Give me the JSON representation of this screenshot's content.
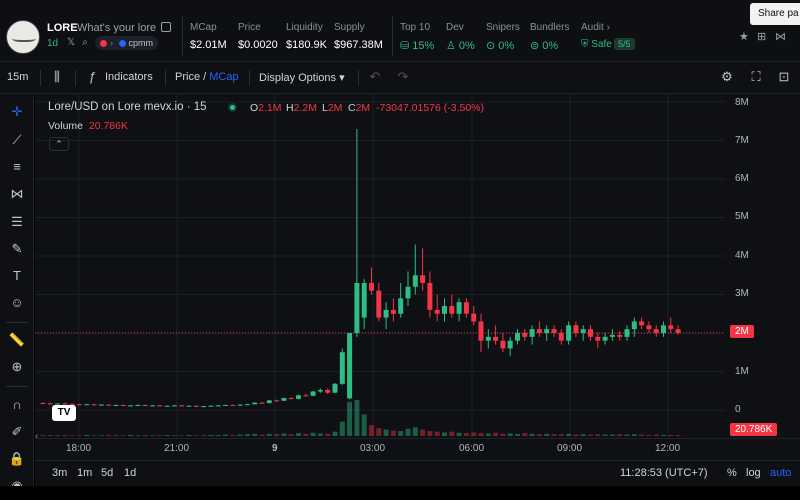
{
  "header": {
    "token_name": "LORE",
    "token_desc": "What's your lore",
    "age": "1d",
    "pair": "cpmm",
    "stats": [
      {
        "label": "MCap",
        "value": "$2.01M"
      },
      {
        "label": "Price",
        "value": "$0.0020"
      },
      {
        "label": "Liquidity",
        "value": "$180.9K"
      },
      {
        "label": "Supply",
        "value": "$967.38M"
      }
    ],
    "security": [
      {
        "label": "Top 10",
        "value": "15%"
      },
      {
        "label": "Dev",
        "value": "0%"
      },
      {
        "label": "Snipers",
        "value": "0%"
      },
      {
        "label": "Bundlers",
        "value": "0%"
      }
    ],
    "audit_label": "Audit",
    "audit_value": "Safe",
    "audit_score": "5/5",
    "share_tooltip": "Share pa"
  },
  "toolbar": {
    "interval": "15m",
    "indicators": "Indicators",
    "price": "Price",
    "price_sep": "/",
    "mcap": "MCap",
    "display_options": "Display Options"
  },
  "legend": {
    "title": "Lore/USD on Lore mevx.io · 15",
    "o_key": "O",
    "o_val": "2.1M",
    "h_key": "H",
    "h_val": "2.2M",
    "l_key": "L",
    "l_val": "2M",
    "c_key": "C",
    "c_val": "2M",
    "change": "-73047.01576 (-3.50%)",
    "volume_label": "Volume",
    "volume_value": "20.786K"
  },
  "price_axis": [
    "8M",
    "7M",
    "6M",
    "5M",
    "4M",
    "3M",
    "2M",
    "1M",
    "0"
  ],
  "price_tag": "2M",
  "volume_tag": "20.786K",
  "time_axis": [
    "18:00",
    "21:00",
    "9",
    "03:00",
    "06:00",
    "09:00",
    "12:00"
  ],
  "bottom": {
    "ranges": [
      "3m",
      "1m",
      "5d",
      "1d"
    ],
    "clock": "11:28:53 (UTC+7)",
    "percent": "%",
    "log": "log",
    "auto": "auto"
  },
  "colors": {
    "up": "#2ebd85",
    "down": "#f23645",
    "background": "#0e1014"
  },
  "chart_data": {
    "type": "candlestick",
    "ylabel": "",
    "ylim": [
      0,
      8000000
    ],
    "candles": [
      {
        "o": 180000,
        "h": 200000,
        "l": 160000,
        "c": 170000
      },
      {
        "o": 170000,
        "h": 190000,
        "l": 150000,
        "c": 160000
      },
      {
        "o": 160000,
        "h": 180000,
        "l": 150000,
        "c": 170000
      },
      {
        "o": 170000,
        "h": 190000,
        "l": 160000,
        "c": 160000
      },
      {
        "o": 160000,
        "h": 170000,
        "l": 140000,
        "c": 150000
      },
      {
        "o": 150000,
        "h": 160000,
        "l": 130000,
        "c": 140000
      },
      {
        "o": 140000,
        "h": 160000,
        "l": 130000,
        "c": 150000
      },
      {
        "o": 150000,
        "h": 160000,
        "l": 120000,
        "c": 130000
      },
      {
        "o": 130000,
        "h": 150000,
        "l": 120000,
        "c": 140000
      },
      {
        "o": 140000,
        "h": 150000,
        "l": 110000,
        "c": 120000
      },
      {
        "o": 120000,
        "h": 140000,
        "l": 110000,
        "c": 130000
      },
      {
        "o": 130000,
        "h": 140000,
        "l": 100000,
        "c": 110000
      },
      {
        "o": 110000,
        "h": 130000,
        "l": 100000,
        "c": 120000
      },
      {
        "o": 120000,
        "h": 140000,
        "l": 110000,
        "c": 130000
      },
      {
        "o": 130000,
        "h": 140000,
        "l": 100000,
        "c": 110000
      },
      {
        "o": 110000,
        "h": 130000,
        "l": 100000,
        "c": 120000
      },
      {
        "o": 120000,
        "h": 130000,
        "l": 90000,
        "c": 100000
      },
      {
        "o": 100000,
        "h": 120000,
        "l": 90000,
        "c": 110000
      },
      {
        "o": 110000,
        "h": 130000,
        "l": 100000,
        "c": 120000
      },
      {
        "o": 120000,
        "h": 130000,
        "l": 90000,
        "c": 100000
      },
      {
        "o": 100000,
        "h": 120000,
        "l": 90000,
        "c": 110000
      },
      {
        "o": 110000,
        "h": 120000,
        "l": 80000,
        "c": 90000
      },
      {
        "o": 90000,
        "h": 110000,
        "l": 80000,
        "c": 100000
      },
      {
        "o": 100000,
        "h": 120000,
        "l": 90000,
        "c": 110000
      },
      {
        "o": 110000,
        "h": 130000,
        "l": 100000,
        "c": 120000
      },
      {
        "o": 120000,
        "h": 140000,
        "l": 110000,
        "c": 130000
      },
      {
        "o": 130000,
        "h": 140000,
        "l": 110000,
        "c": 120000
      },
      {
        "o": 120000,
        "h": 150000,
        "l": 110000,
        "c": 140000
      },
      {
        "o": 140000,
        "h": 160000,
        "l": 130000,
        "c": 150000
      },
      {
        "o": 150000,
        "h": 200000,
        "l": 140000,
        "c": 190000
      },
      {
        "o": 190000,
        "h": 210000,
        "l": 170000,
        "c": 180000
      },
      {
        "o": 180000,
        "h": 260000,
        "l": 170000,
        "c": 250000
      },
      {
        "o": 250000,
        "h": 270000,
        "l": 230000,
        "c": 240000
      },
      {
        "o": 240000,
        "h": 320000,
        "l": 230000,
        "c": 310000
      },
      {
        "o": 310000,
        "h": 330000,
        "l": 280000,
        "c": 290000
      },
      {
        "o": 290000,
        "h": 400000,
        "l": 280000,
        "c": 380000
      },
      {
        "o": 380000,
        "h": 420000,
        "l": 350000,
        "c": 370000
      },
      {
        "o": 370000,
        "h": 500000,
        "l": 360000,
        "c": 480000
      },
      {
        "o": 480000,
        "h": 560000,
        "l": 450000,
        "c": 520000
      },
      {
        "o": 520000,
        "h": 560000,
        "l": 420000,
        "c": 450000
      },
      {
        "o": 450000,
        "h": 700000,
        "l": 440000,
        "c": 680000
      },
      {
        "o": 680000,
        "h": 1600000,
        "l": 650000,
        "c": 1500000
      },
      {
        "o": 300000,
        "h": 2000000,
        "l": 280000,
        "c": 2000000
      },
      {
        "o": 2000000,
        "h": 7300000,
        "l": 1900000,
        "c": 3300000
      },
      {
        "o": 2400000,
        "h": 3400000,
        "l": 2100000,
        "c": 3300000
      },
      {
        "o": 3300000,
        "h": 3700000,
        "l": 3000000,
        "c": 3100000
      },
      {
        "o": 3100000,
        "h": 3300000,
        "l": 2300000,
        "c": 2400000
      },
      {
        "o": 2400000,
        "h": 2800000,
        "l": 2100000,
        "c": 2600000
      },
      {
        "o": 2600000,
        "h": 2900000,
        "l": 2300000,
        "c": 2500000
      },
      {
        "o": 2500000,
        "h": 3300000,
        "l": 2400000,
        "c": 2900000
      },
      {
        "o": 2900000,
        "h": 3600000,
        "l": 2700000,
        "c": 3200000
      },
      {
        "o": 3200000,
        "h": 4300000,
        "l": 3000000,
        "c": 3500000
      },
      {
        "o": 3500000,
        "h": 4200000,
        "l": 3100000,
        "c": 3300000
      },
      {
        "o": 3300000,
        "h": 3600000,
        "l": 2400000,
        "c": 2600000
      },
      {
        "o": 2600000,
        "h": 3000000,
        "l": 2300000,
        "c": 2500000
      },
      {
        "o": 2500000,
        "h": 2900000,
        "l": 2300000,
        "c": 2700000
      },
      {
        "o": 2700000,
        "h": 3000000,
        "l": 2400000,
        "c": 2500000
      },
      {
        "o": 2500000,
        "h": 2900000,
        "l": 2300000,
        "c": 2800000
      },
      {
        "o": 2800000,
        "h": 2900000,
        "l": 2400000,
        "c": 2500000
      },
      {
        "o": 2500000,
        "h": 2700000,
        "l": 2200000,
        "c": 2300000
      },
      {
        "o": 2300000,
        "h": 2500000,
        "l": 1500000,
        "c": 1800000
      },
      {
        "o": 1800000,
        "h": 2100000,
        "l": 1600000,
        "c": 1900000
      },
      {
        "o": 1900000,
        "h": 2200000,
        "l": 1700000,
        "c": 1800000
      },
      {
        "o": 1800000,
        "h": 2000000,
        "l": 1500000,
        "c": 1600000
      },
      {
        "o": 1600000,
        "h": 1900000,
        "l": 1400000,
        "c": 1800000
      },
      {
        "o": 1800000,
        "h": 2100000,
        "l": 1700000,
        "c": 2000000
      },
      {
        "o": 2000000,
        "h": 2100000,
        "l": 1800000,
        "c": 1900000
      },
      {
        "o": 1900000,
        "h": 2200000,
        "l": 1700000,
        "c": 2100000
      },
      {
        "o": 2100000,
        "h": 2300000,
        "l": 1900000,
        "c": 2000000
      },
      {
        "o": 2000000,
        "h": 2200000,
        "l": 1800000,
        "c": 2100000
      },
      {
        "o": 2100000,
        "h": 2200000,
        "l": 1900000,
        "c": 2000000
      },
      {
        "o": 2000000,
        "h": 2100000,
        "l": 1700000,
        "c": 1800000
      },
      {
        "o": 1800000,
        "h": 2300000,
        "l": 1700000,
        "c": 2200000
      },
      {
        "o": 2200000,
        "h": 2300000,
        "l": 1900000,
        "c": 2000000
      },
      {
        "o": 2000000,
        "h": 2200000,
        "l": 1800000,
        "c": 2100000
      },
      {
        "o": 2100000,
        "h": 2200000,
        "l": 1800000,
        "c": 1900000
      },
      {
        "o": 1900000,
        "h": 2000000,
        "l": 1600000,
        "c": 1800000
      },
      {
        "o": 1800000,
        "h": 2000000,
        "l": 1700000,
        "c": 1900000
      },
      {
        "o": 1900000,
        "h": 2100000,
        "l": 1800000,
        "c": 1950000
      },
      {
        "o": 1950000,
        "h": 2050000,
        "l": 1800000,
        "c": 1900000
      },
      {
        "o": 1900000,
        "h": 2200000,
        "l": 1800000,
        "c": 2100000
      },
      {
        "o": 2100000,
        "h": 2400000,
        "l": 1900000,
        "c": 2300000
      },
      {
        "o": 2300000,
        "h": 2400000,
        "l": 2100000,
        "c": 2200000
      },
      {
        "o": 2200000,
        "h": 2300000,
        "l": 2000000,
        "c": 2100000
      },
      {
        "o": 2100000,
        "h": 2200000,
        "l": 1900000,
        "c": 2000000
      },
      {
        "o": 2000000,
        "h": 2300000,
        "l": 1900000,
        "c": 2200000
      },
      {
        "o": 2200000,
        "h": 2400000,
        "l": 2000000,
        "c": 2100000
      },
      {
        "o": 2100000,
        "h": 2200000,
        "l": 1950000,
        "c": 2000000
      }
    ],
    "volumes": [
      3,
      3,
      2,
      3,
      2,
      2,
      3,
      2,
      2,
      3,
      2,
      2,
      3,
      2,
      3,
      2,
      2,
      3,
      2,
      2,
      3,
      2,
      2,
      3,
      3,
      4,
      3,
      4,
      5,
      6,
      4,
      6,
      5,
      7,
      5,
      8,
      6,
      9,
      7,
      6,
      12,
      40,
      95,
      100,
      60,
      30,
      22,
      18,
      15,
      14,
      20,
      24,
      18,
      14,
      12,
      10,
      12,
      9,
      8,
      10,
      8,
      7,
      9,
      6,
      7,
      6,
      8,
      6,
      5,
      6,
      5,
      5,
      6,
      4,
      5,
      4,
      5,
      4,
      4,
      5,
      4,
      5,
      4,
      3,
      4,
      3,
      3,
      3
    ]
  }
}
